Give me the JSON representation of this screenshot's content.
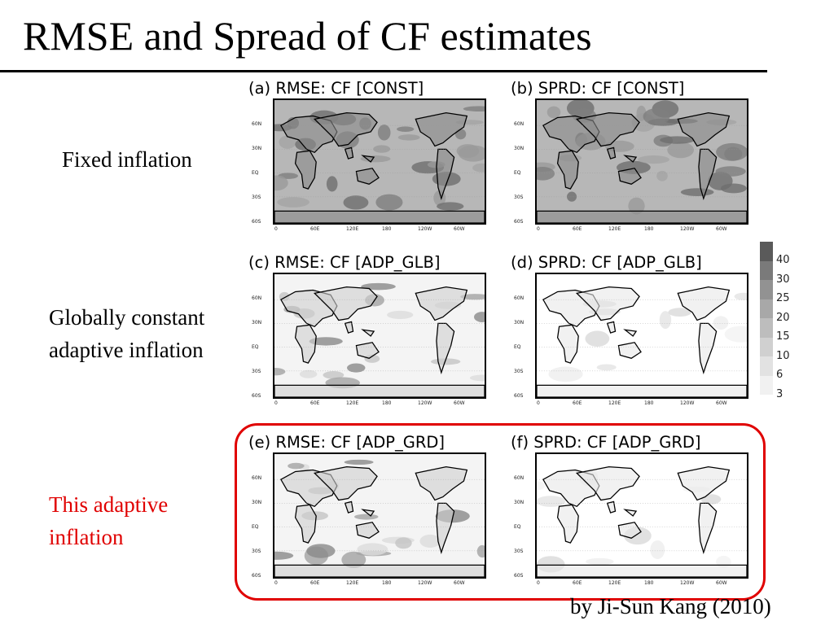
{
  "title": "RMSE and Spread of CF estimates",
  "row_labels": {
    "fixed": "Fixed inflation",
    "global_1": "Globally constant",
    "global_2": "adaptive inflation",
    "adaptive_1": "This adaptive",
    "adaptive_2": "inflation"
  },
  "colors": {
    "highlight": "#e00000",
    "highlight_text": "#e00000"
  },
  "panels": [
    {
      "title": "(a) RMSE: CF [CONST]",
      "shading": "heavy"
    },
    {
      "title": "(b) SPRD: CF [CONST]",
      "shading": "heavy"
    },
    {
      "title": "(c) RMSE: CF [ADP_GLB]",
      "shading": "medium"
    },
    {
      "title": "(d) SPRD: CF [ADP_GLB]",
      "shading": "light"
    },
    {
      "title": "(e) RMSE: CF [ADP_GRD]",
      "shading": "medium"
    },
    {
      "title": "(f) SPRD: CF [ADP_GRD]",
      "shading": "light"
    }
  ],
  "map_axes": {
    "lat_labels": [
      "60N",
      "30N",
      "EQ",
      "30S",
      "60S"
    ],
    "lon_labels": [
      "0",
      "60E",
      "120E",
      "180",
      "120W",
      "60W"
    ]
  },
  "legend": {
    "labels": [
      "40",
      "30",
      "25",
      "20",
      "15",
      "10",
      "6",
      "3"
    ],
    "colors": [
      "#5a5a5a",
      "#7a7a7a",
      "#929292",
      "#a8a8a8",
      "#bdbdbd",
      "#d0d0d0",
      "#e2e2e2",
      "#f1f1f1"
    ]
  },
  "credit": "by Ji-Sun Kang (2010)"
}
